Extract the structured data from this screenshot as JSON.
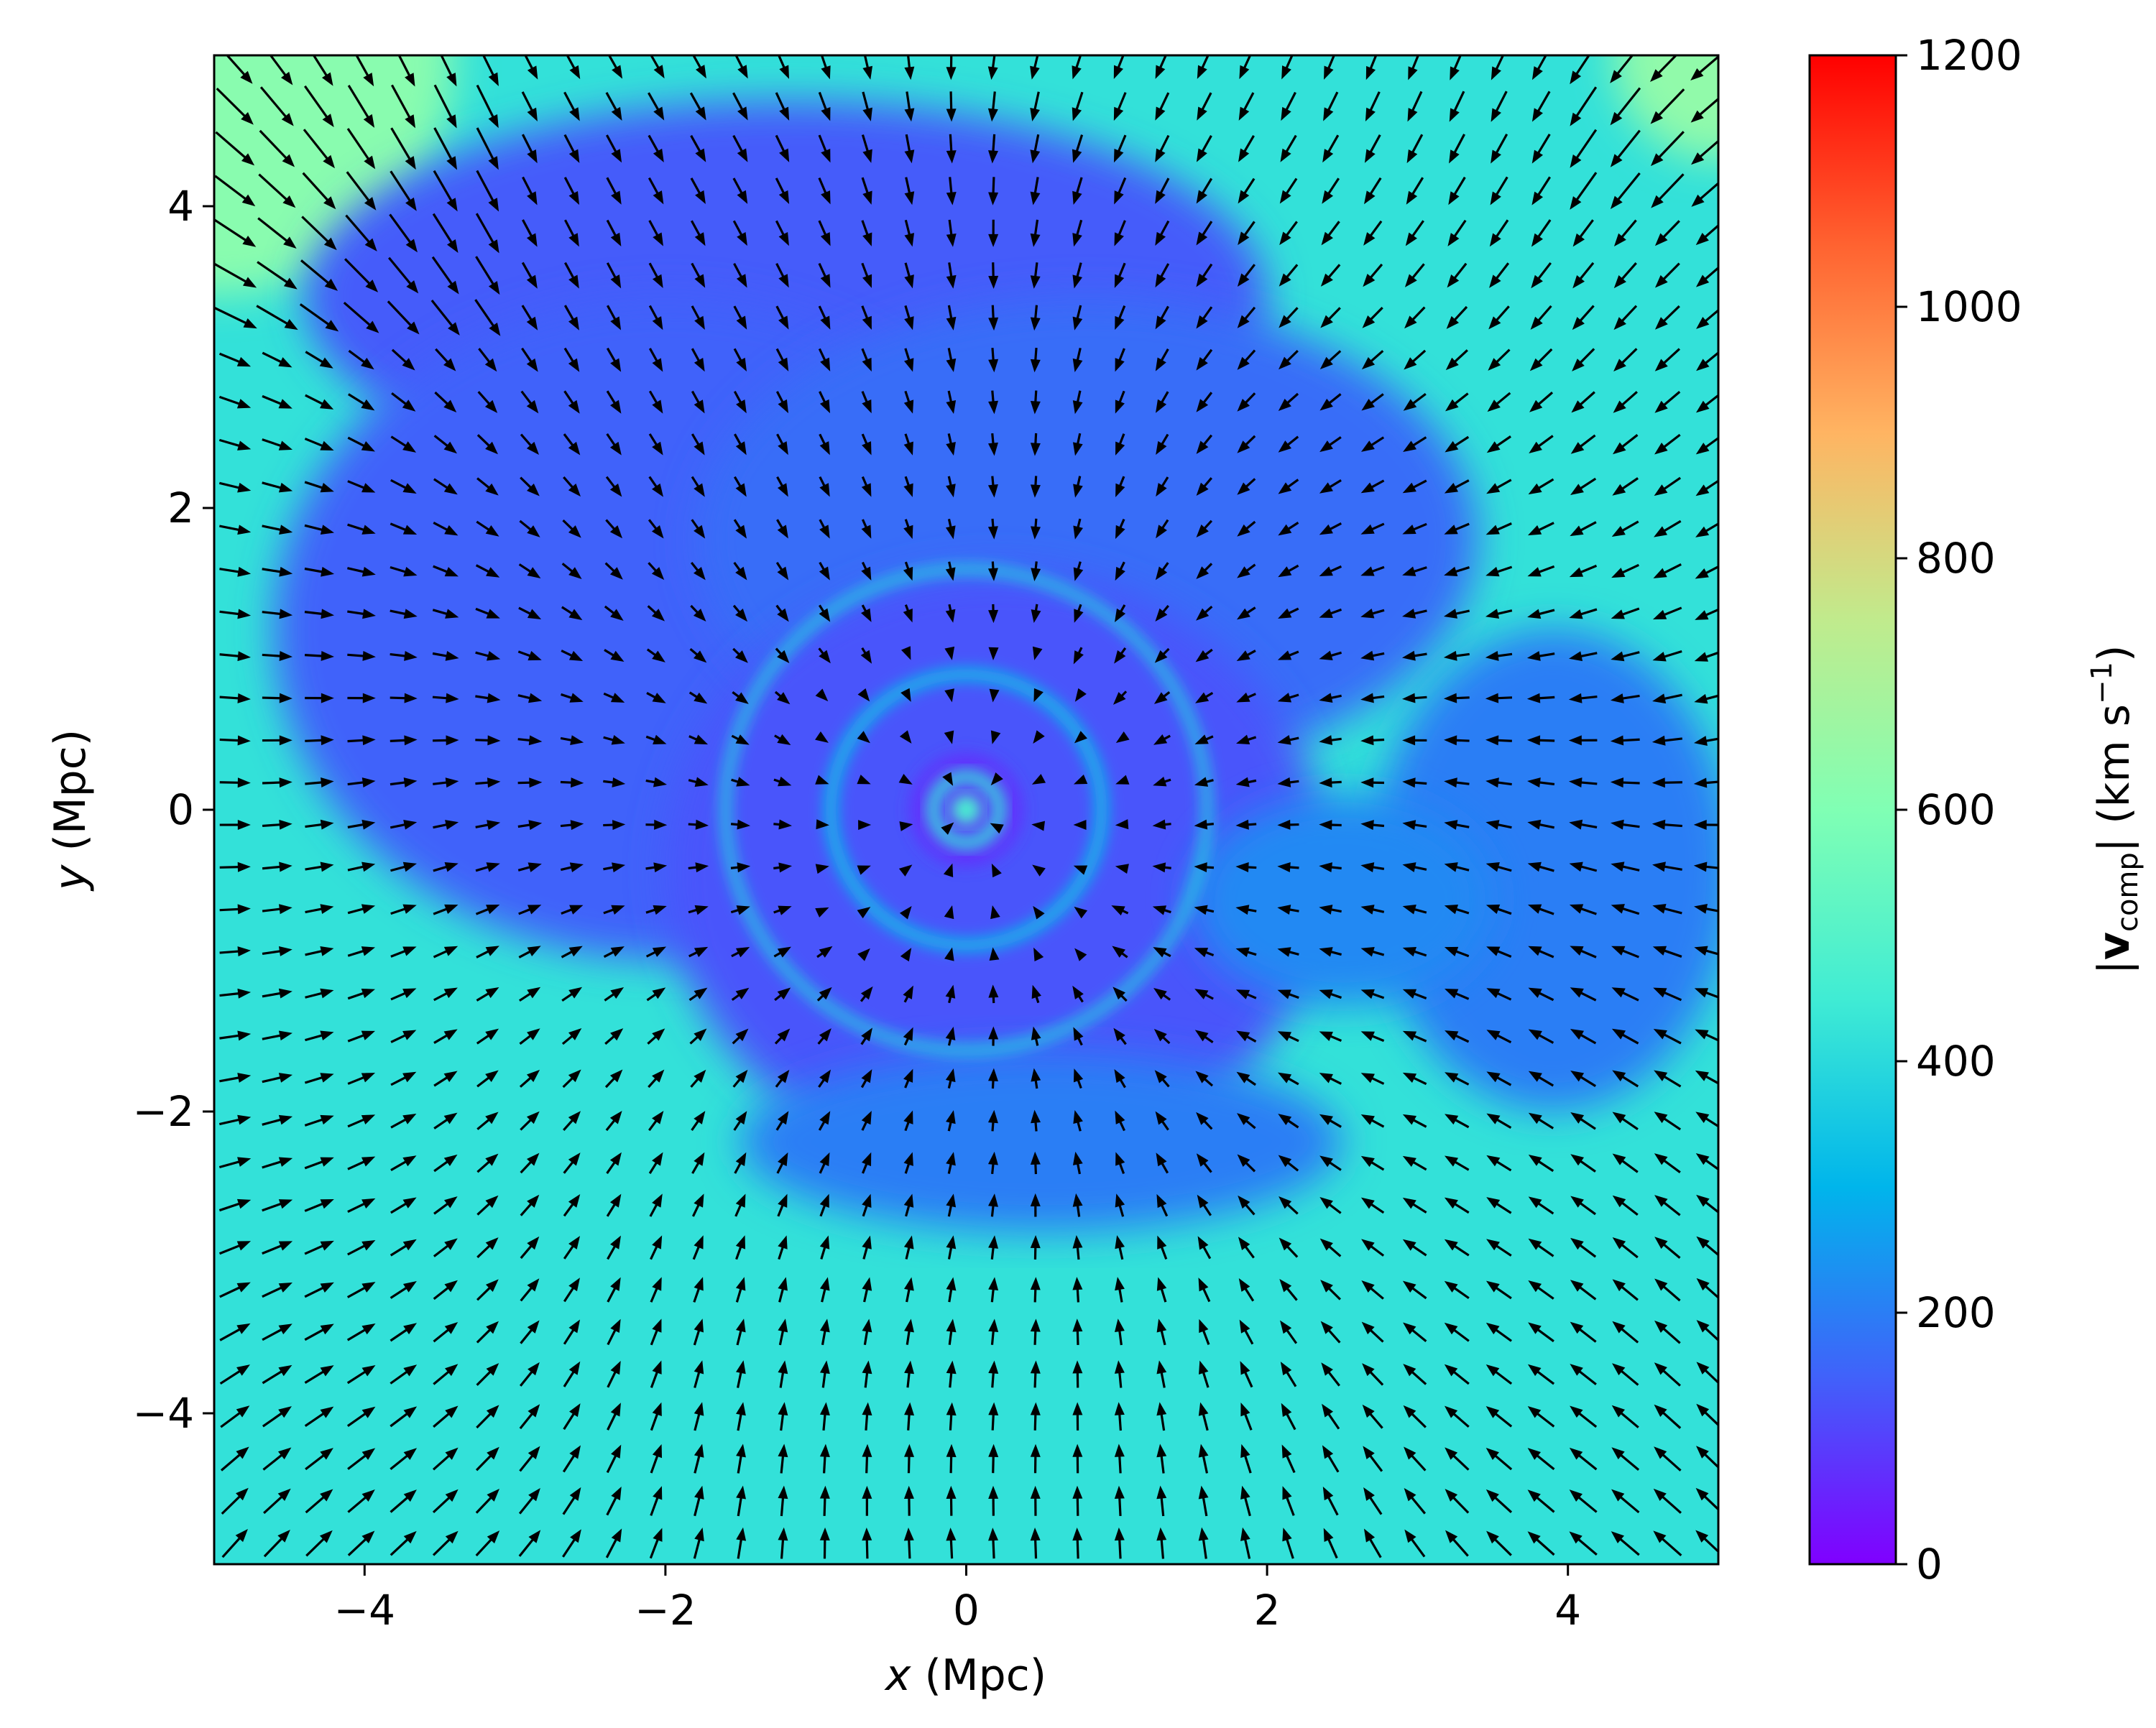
{
  "chart_data": {
    "type": "heatmap",
    "overlay": "vector-field (quiver arrows, black)",
    "colormap": "rainbow",
    "x": {
      "label_var": "x",
      "label_unit": "(Mpc)",
      "range": [
        -5,
        5
      ],
      "ticks": [
        -4,
        -2,
        0,
        2,
        4
      ],
      "tick_labels": [
        "−4",
        "−2",
        "0",
        "2",
        "4"
      ]
    },
    "y": {
      "label_var": "y",
      "label_unit": "(Mpc)",
      "range": [
        -5,
        5
      ],
      "ticks": [
        -4,
        -2,
        0,
        2,
        4
      ],
      "tick_labels": [
        "−4",
        "−2",
        "0",
        "2",
        "4"
      ]
    },
    "colorbar": {
      "label_bar_open": "|",
      "label_var": "v",
      "label_sub": "comp",
      "label_bar_close": "|",
      "label_unit_open": "(km s",
      "label_unit_exp": "−1",
      "label_unit_close": ")",
      "range": [
        0,
        1200
      ],
      "ticks": [
        0,
        200,
        400,
        600,
        800,
        1000,
        1200
      ],
      "tick_labels": [
        "0",
        "200",
        "400",
        "600",
        "800",
        "1000",
        "1200"
      ],
      "colors": [
        "#8000ff",
        "#4062fa",
        "#00b5eb",
        "#40ecd4",
        "#80ffb4",
        "#c0eb8d",
        "#ffb462",
        "#ff6230",
        "#ff0000"
      ]
    },
    "field_regions": [
      {
        "shape": "background",
        "value": 420
      },
      {
        "shape": "corner-nw",
        "center": [
          -5,
          5
        ],
        "radius": 1.6,
        "value": 620
      },
      {
        "shape": "corner-ne",
        "center": [
          5,
          5
        ],
        "radius": 0.7,
        "value": 640
      },
      {
        "shape": "blob",
        "center": [
          -1.2,
          3.4
        ],
        "rx": 3.2,
        "ry": 1.3,
        "value": 140
      },
      {
        "shape": "blob",
        "center": [
          -2.0,
          1.2
        ],
        "rx": 2.6,
        "ry": 2.2,
        "value": 150
      },
      {
        "shape": "blob",
        "center": [
          0.8,
          1.8
        ],
        "rx": 2.6,
        "ry": 1.6,
        "value": 170
      },
      {
        "shape": "blob",
        "center": [
          0.2,
          -0.4
        ],
        "rx": 2.2,
        "ry": 2.0,
        "value": 130
      },
      {
        "shape": "blob",
        "center": [
          0.5,
          -2.2
        ],
        "rx": 2.0,
        "ry": 0.6,
        "value": 200
      },
      {
        "shape": "blob",
        "center": [
          3.9,
          -0.4
        ],
        "rx": 1.2,
        "ry": 1.6,
        "value": 200
      },
      {
        "shape": "blob",
        "center": [
          2.5,
          -0.6
        ],
        "rx": 1.0,
        "ry": 0.7,
        "value": 220
      },
      {
        "shape": "ring",
        "center": [
          0,
          0
        ],
        "radius": 1.6,
        "width": 0.06,
        "value": 380
      },
      {
        "shape": "ring",
        "center": [
          0,
          0
        ],
        "radius": 0.9,
        "width": 0.08,
        "value": 330
      },
      {
        "shape": "disc",
        "center": [
          0,
          0
        ],
        "radius": 0.38,
        "value": 80
      },
      {
        "shape": "ring",
        "center": [
          0,
          0
        ],
        "radius": 0.22,
        "width": 0.08,
        "value": 420
      },
      {
        "shape": "disc",
        "center": [
          0,
          0
        ],
        "radius": 0.1,
        "value": 470
      }
    ],
    "vector_field": {
      "description": "velocity arrows pointing inward toward the center (0,0), longest near the north-west and north-east corners, short in the central region",
      "grid_spacing": 0.28
    }
  }
}
